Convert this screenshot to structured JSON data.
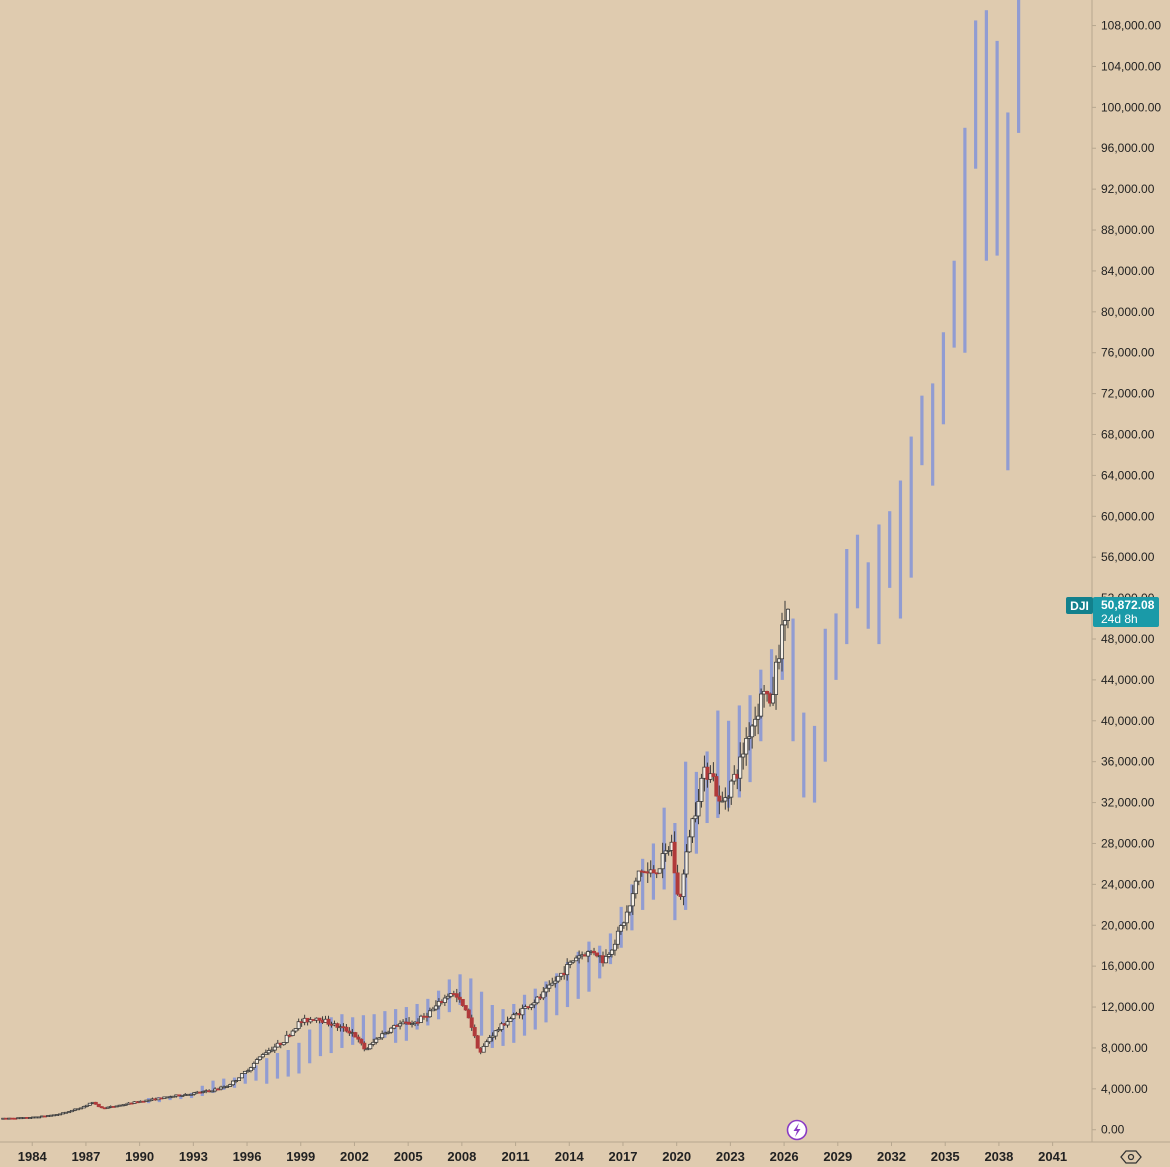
{
  "chart_data": {
    "type": "candlestick",
    "symbol": "DJI",
    "last_price_label": "50,872.08",
    "countdown_label": "24d 8h",
    "last_price": 50872.08,
    "ylim": [
      -1200,
      110500
    ],
    "xlim": [
      1982.2,
      2043.2
    ],
    "y_ticks": [
      0,
      4000,
      8000,
      12000,
      16000,
      20000,
      24000,
      28000,
      32000,
      36000,
      40000,
      44000,
      48000,
      52000,
      56000,
      60000,
      64000,
      68000,
      72000,
      76000,
      80000,
      84000,
      88000,
      92000,
      96000,
      100000,
      104000,
      108000
    ],
    "y_tick_labels": [
      "0.00",
      "4,000.00",
      "8,000.00",
      "12,000.00",
      "16,000.00",
      "20,000.00",
      "24,000.00",
      "28,000.00",
      "32,000.00",
      "36,000.00",
      "40,000.00",
      "44,000.00",
      "48,000.00",
      "52,000.00",
      "56,000.00",
      "60,000.00",
      "64,000.00",
      "68,000.00",
      "72,000.00",
      "76,000.00",
      "80,000.00",
      "84,000.00",
      "88,000.00",
      "92,000.00",
      "96,000.00",
      "100,000.00",
      "104,000.00",
      "108,000.00"
    ],
    "x_ticks": [
      1984,
      1987,
      1990,
      1993,
      1996,
      1999,
      2002,
      2005,
      2008,
      2011,
      2014,
      2017,
      2020,
      2023,
      2026,
      2029,
      2032,
      2035,
      2038,
      2041
    ],
    "x_tick_labels": [
      "1984",
      "1987",
      "1990",
      "1993",
      "1996",
      "1999",
      "2002",
      "2005",
      "2008",
      "2011",
      "2014",
      "2017",
      "2020",
      "2023",
      "2026",
      "2029",
      "2032",
      "2035",
      "2038",
      "2041"
    ],
    "candle_anchors": [
      [
        1982.3,
        1100
      ],
      [
        1984.0,
        1200
      ],
      [
        1985.5,
        1500
      ],
      [
        1987.0,
        2300
      ],
      [
        1987.4,
        2700
      ],
      [
        1988.0,
        2100
      ],
      [
        1990.0,
        2750
      ],
      [
        1992.0,
        3300
      ],
      [
        1994.0,
        3800
      ],
      [
        1995.0,
        4300
      ],
      [
        1996.0,
        5700
      ],
      [
        1997.0,
        7500
      ],
      [
        1998.0,
        8500
      ],
      [
        1999.0,
        10500
      ],
      [
        2000.0,
        11000
      ],
      [
        2001.0,
        10200
      ],
      [
        2002.0,
        9500
      ],
      [
        2002.7,
        7800
      ],
      [
        2003.5,
        9200
      ],
      [
        2004.5,
        10300
      ],
      [
        2005.5,
        10500
      ],
      [
        2006.5,
        11800
      ],
      [
        2007.5,
        13500
      ],
      [
        2008.0,
        12500
      ],
      [
        2008.5,
        11000
      ],
      [
        2009.1,
        7500
      ],
      [
        2009.6,
        9000
      ],
      [
        2010.5,
        10500
      ],
      [
        2011.5,
        11800
      ],
      [
        2012.5,
        13000
      ],
      [
        2013.5,
        15000
      ],
      [
        2014.5,
        17000
      ],
      [
        2015.5,
        17500
      ],
      [
        2016.0,
        16500
      ],
      [
        2016.5,
        18000
      ],
      [
        2017.5,
        22000
      ],
      [
        2018.0,
        25500
      ],
      [
        2018.5,
        25000
      ],
      [
        2019.0,
        25500
      ],
      [
        2019.8,
        28000
      ],
      [
        2020.2,
        22000
      ],
      [
        2020.8,
        29000
      ],
      [
        2021.5,
        34500
      ],
      [
        2022.0,
        35500
      ],
      [
        2022.5,
        31500
      ],
      [
        2023.0,
        33500
      ],
      [
        2023.5,
        35000
      ],
      [
        2024.0,
        38500
      ],
      [
        2024.5,
        40500
      ],
      [
        2025.0,
        43500
      ],
      [
        2025.3,
        41000
      ],
      [
        2025.7,
        46000
      ],
      [
        2026.2,
        50872
      ]
    ],
    "projection_bars": [
      [
        1990.5,
        2600,
        3100
      ],
      [
        1991.1,
        2700,
        3200
      ],
      [
        1991.7,
        2900,
        3300
      ],
      [
        1992.3,
        3000,
        3450
      ],
      [
        1992.9,
        3100,
        3600
      ],
      [
        1993.5,
        3300,
        4300
      ],
      [
        1994.1,
        3600,
        4800
      ],
      [
        1994.7,
        3900,
        5000
      ],
      [
        1995.3,
        4100,
        5100
      ],
      [
        1995.9,
        4500,
        5600
      ],
      [
        1996.5,
        4800,
        6300
      ],
      [
        1997.1,
        4500,
        7000
      ],
      [
        1997.7,
        5000,
        7500
      ],
      [
        1998.3,
        5200,
        7800
      ],
      [
        1998.9,
        5500,
        8500
      ],
      [
        1999.5,
        6500,
        9800
      ],
      [
        2000.1,
        7200,
        10500
      ],
      [
        2000.7,
        7500,
        11000
      ],
      [
        2001.3,
        8000,
        11300
      ],
      [
        2001.9,
        8300,
        11000
      ],
      [
        2002.5,
        8500,
        11200
      ],
      [
        2003.1,
        8800,
        11300
      ],
      [
        2003.7,
        9000,
        11600
      ],
      [
        2004.3,
        8500,
        11800
      ],
      [
        2004.9,
        8700,
        12000
      ],
      [
        2005.5,
        9800,
        12300
      ],
      [
        2006.1,
        10200,
        12800
      ],
      [
        2006.7,
        10800,
        13600
      ],
      [
        2007.3,
        11500,
        14700
      ],
      [
        2007.9,
        12200,
        15200
      ],
      [
        2008.5,
        11000,
        14800
      ],
      [
        2009.1,
        9200,
        13500
      ],
      [
        2009.7,
        8000,
        12200
      ],
      [
        2010.3,
        8200,
        11800
      ],
      [
        2010.9,
        8500,
        12300
      ],
      [
        2011.5,
        9200,
        13200
      ],
      [
        2012.1,
        9800,
        13800
      ],
      [
        2012.7,
        10500,
        14500
      ],
      [
        2013.3,
        11200,
        15300
      ],
      [
        2013.9,
        12000,
        16400
      ],
      [
        2014.5,
        12800,
        17400
      ],
      [
        2015.1,
        13500,
        18400
      ],
      [
        2015.7,
        14800,
        18000
      ],
      [
        2016.3,
        16200,
        19200
      ],
      [
        2016.9,
        17800,
        21800
      ],
      [
        2017.5,
        19500,
        24000
      ],
      [
        2018.1,
        21500,
        26500
      ],
      [
        2018.7,
        22500,
        28000
      ],
      [
        2019.3,
        23500,
        31500
      ],
      [
        2019.9,
        20500,
        30000
      ],
      [
        2020.5,
        21500,
        36000
      ],
      [
        2021.1,
        27000,
        35000
      ],
      [
        2021.7,
        30000,
        37000
      ],
      [
        2022.3,
        30500,
        41000
      ],
      [
        2022.9,
        31500,
        40000
      ],
      [
        2023.5,
        32500,
        41500
      ],
      [
        2024.1,
        34000,
        42500
      ],
      [
        2024.7,
        38000,
        45000
      ],
      [
        2025.3,
        42000,
        47000
      ],
      [
        2025.9,
        44000,
        48500
      ],
      [
        2026.5,
        38000,
        50000
      ],
      [
        2027.1,
        32500,
        40800
      ],
      [
        2027.7,
        32000,
        39500
      ],
      [
        2028.3,
        36000,
        49000
      ],
      [
        2028.9,
        44000,
        50500
      ],
      [
        2029.5,
        47500,
        56800
      ],
      [
        2030.1,
        51000,
        58200
      ],
      [
        2030.7,
        49000,
        55500
      ],
      [
        2031.3,
        47500,
        59200
      ],
      [
        2031.9,
        53000,
        60500
      ],
      [
        2032.5,
        50000,
        63500
      ],
      [
        2033.1,
        54000,
        67800
      ],
      [
        2033.7,
        65000,
        71800
      ],
      [
        2034.3,
        63000,
        73000
      ],
      [
        2034.9,
        69000,
        78000
      ],
      [
        2035.5,
        76500,
        85000
      ],
      [
        2036.1,
        76000,
        98000
      ],
      [
        2036.7,
        94000,
        108500
      ],
      [
        2037.3,
        85000,
        109500
      ],
      [
        2037.9,
        85500,
        106500
      ],
      [
        2038.5,
        64500,
        99500
      ],
      [
        2039.1,
        97500,
        110500
      ]
    ]
  },
  "colors": {
    "background": "#dfcbaf",
    "candle_body": "#3a3a3a",
    "candle_down": "#b03a3a",
    "projection": "#8c99d4",
    "badge": "#1a9aa8",
    "badge_dark": "#12808c",
    "axis_line": "#b7a78f",
    "tick_text": "#222222",
    "flash_icon": "#8a3bc4"
  },
  "icons": {
    "flash": "lightning-icon",
    "settings": "settings-icon"
  }
}
